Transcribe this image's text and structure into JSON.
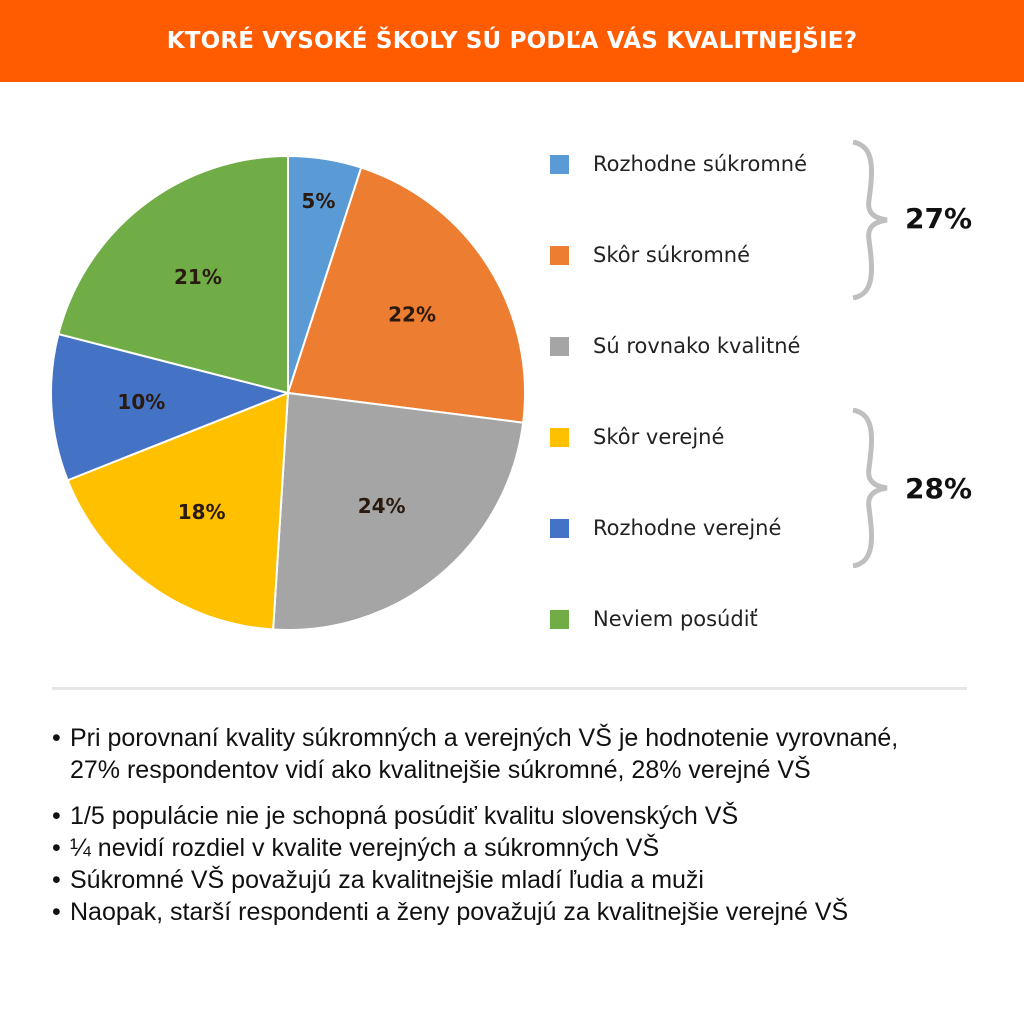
{
  "header": {
    "title": "KTORÉ VYSOKÉ ŠKOLY SÚ PODĽA VÁS KVALITNEJŠIE?"
  },
  "chart_data": {
    "type": "pie",
    "title": "KTORÉ VYSOKÉ ŠKOLY SÚ PODĽA VÁS KVALITNEJŠIE?",
    "categories": [
      "Rozhodne súkromné",
      "Skôr súkromné",
      "Sú rovnako kvalitné",
      "Skôr verejné",
      "Rozhodne verejné",
      "Neviem posúdiť"
    ],
    "values": [
      5,
      22,
      24,
      18,
      10,
      21
    ],
    "labels": [
      "5%",
      "22%",
      "24%",
      "18%",
      "10%",
      "21%"
    ],
    "colors": [
      "#5b9bd5",
      "#ed7d31",
      "#a5a5a5",
      "#ffc000",
      "#4472c4",
      "#70ad47"
    ],
    "legend_position": "right",
    "groups": [
      {
        "members": [
          "Rozhodne súkromné",
          "Skôr súkromné"
        ],
        "total": "27%"
      },
      {
        "members": [
          "Skôr verejné",
          "Rozhodne verejné"
        ],
        "total": "28%"
      }
    ]
  },
  "notes": [
    "Pri porovnaní kvality súkromných a verejných VŠ je hodnotenie vyrovnané, 27% respondentov vidí ako kvalitnejšie súkromné, 28% verejné VŠ",
    "1/5 populácie nie je schopná posúdiť kvalitu slovenských VŠ",
    "¼ nevidí rozdiel v kvalite verejných a súkromných VŠ",
    "Súkromné VŠ považujú za kvalitnejšie mladí ľudia a muži",
    "Naopak, starší respondenti a ženy považujú za kvalitnejšie verejné VŠ"
  ],
  "bullet": "•"
}
